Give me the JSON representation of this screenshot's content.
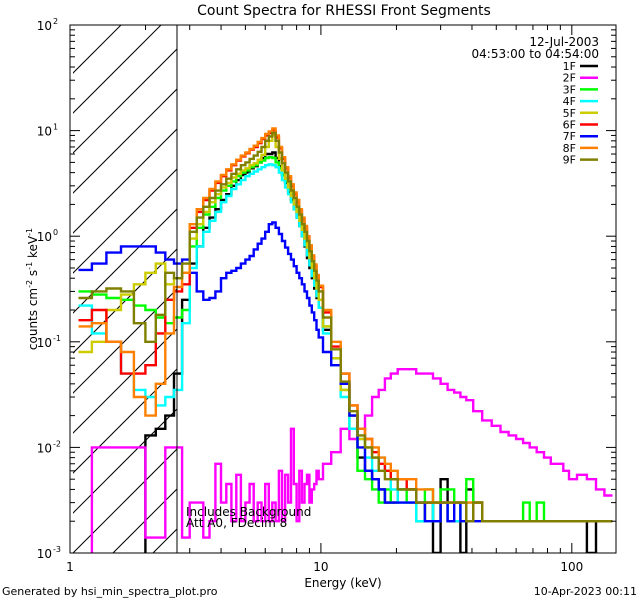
{
  "chart_data": {
    "type": "line",
    "title": "Count Spectra for RHESSI Front Segments",
    "xlabel": "Energy (keV)",
    "ylabel_parts": [
      "counts cm",
      "-2",
      " s",
      "-1",
      " keV",
      "-1"
    ],
    "x_scale": "log",
    "y_scale": "log",
    "xlim": [
      1,
      150
    ],
    "ylim": [
      0.001,
      100
    ],
    "x_ticks": [
      {
        "value": 1,
        "label": "1"
      },
      {
        "value": 10,
        "label": "10"
      },
      {
        "value": 100,
        "label": "100"
      }
    ],
    "y_ticks": [
      {
        "value": 0.001,
        "base": "10",
        "exp": "-3"
      },
      {
        "value": 0.01,
        "base": "10",
        "exp": "-2"
      },
      {
        "value": 0.1,
        "base": "10",
        "exp": "-1"
      },
      {
        "value": 1,
        "base": "10",
        "exp": "0"
      },
      {
        "value": 10,
        "base": "10",
        "exp": "1"
      },
      {
        "value": 100,
        "base": "10",
        "exp": "2"
      }
    ],
    "hatched_region_x": [
      1.1,
      3.0
    ],
    "date_text": "12-Jul-2003",
    "time_range_text": "04:53:00 to 04:54:00",
    "annotations": [
      "Includes Background",
      "Att A0, FDecim 8"
    ],
    "footer_left": "Generated by hsi_min_spectra_plot.pro",
    "footer_right": "10-Apr-2023 00:11",
    "legend_position": "top-right",
    "energy_bins": [
      1.15,
      1.3,
      1.5,
      1.7,
      1.9,
      2.1,
      2.3,
      2.5,
      2.7,
      2.9,
      3.1,
      3.3,
      3.5,
      3.7,
      3.9,
      4.1,
      4.3,
      4.5,
      4.7,
      4.9,
      5.1,
      5.3,
      5.5,
      5.7,
      5.9,
      6.1,
      6.3,
      6.5,
      6.7,
      6.9,
      7.1,
      7.3,
      7.5,
      7.7,
      7.9,
      8.1,
      8.3,
      8.5,
      8.7,
      8.9,
      9.1,
      9.3,
      9.5,
      9.7,
      9.9,
      10.5,
      11.5,
      12.5,
      13.5,
      14.5,
      15.5,
      16.5,
      17.5,
      18.5,
      19.5,
      21,
      23,
      25,
      27,
      29,
      31,
      33,
      35,
      37,
      39,
      42,
      46,
      50,
      54,
      58,
      62,
      66,
      70,
      75,
      80,
      85,
      90,
      95,
      100,
      110,
      120,
      130,
      140
    ],
    "series": [
      {
        "name": "1F",
        "color": "#000000",
        "values": [
          0.0,
          0.0,
          0.0,
          0.0,
          0.0,
          0.013,
          0.015,
          0.02,
          0.05,
          0.25,
          0.55,
          0.8,
          1.2,
          1.5,
          1.8,
          2.2,
          2.5,
          3.0,
          3.4,
          3.8,
          4.0,
          4.4,
          4.6,
          5.0,
          5.5,
          6.0,
          6.0,
          6.2,
          5.5,
          4.6,
          3.8,
          3.2,
          2.6,
          2.2,
          1.8,
          1.5,
          1.25,
          1.0,
          0.8,
          0.62,
          0.5,
          0.4,
          0.32,
          0.26,
          0.21,
          0.13,
          0.07,
          0.04,
          0.02,
          0.008,
          0.006,
          0.005,
          0.004,
          0.003,
          0.003,
          0.004,
          0.004,
          0.002,
          0.003,
          0.001,
          0.005,
          0.002,
          0.002,
          0.001,
          0.004,
          0.003,
          0.002,
          0.002,
          0.002,
          0.002,
          0.002,
          0.002,
          0.002,
          0.002,
          0.002,
          0.002,
          0.002,
          0.002,
          0.002,
          0.002,
          0.001,
          0.002,
          0.002
        ]
      },
      {
        "name": "2F",
        "color": "#ff00ff",
        "values": [
          0.0,
          0.01,
          0.01,
          0.01,
          0.01,
          0.0014,
          0.0014,
          0.01,
          0.01,
          0.0014,
          0.003,
          0.003,
          0.0014,
          0.002,
          0.007,
          0.003,
          0.0045,
          0.002,
          0.0055,
          0.002,
          0.003,
          0.0045,
          0.002,
          0.003,
          0.002,
          0.0045,
          0.002,
          0.003,
          0.002,
          0.006,
          0.002,
          0.0055,
          0.003,
          0.015,
          0.0045,
          0.002,
          0.006,
          0.003,
          0.0045,
          0.0055,
          0.003,
          0.004,
          0.0045,
          0.006,
          0.005,
          0.007,
          0.009,
          0.015,
          0.012,
          0.015,
          0.02,
          0.03,
          0.035,
          0.045,
          0.05,
          0.055,
          0.055,
          0.05,
          0.05,
          0.045,
          0.04,
          0.035,
          0.033,
          0.03,
          0.028,
          0.022,
          0.018,
          0.016,
          0.014,
          0.013,
          0.012,
          0.011,
          0.01,
          0.009,
          0.008,
          0.007,
          0.007,
          0.006,
          0.005,
          0.0055,
          0.005,
          0.004,
          0.0035
        ]
      },
      {
        "name": "3F",
        "color": "#00ff00",
        "values": [
          0.3,
          0.28,
          0.26,
          0.25,
          0.22,
          0.2,
          0.17,
          0.15,
          0.17,
          0.2,
          0.8,
          1.2,
          1.6,
          1.9,
          2.3,
          2.7,
          3.0,
          3.3,
          3.7,
          4.0,
          4.2,
          4.5,
          4.7,
          5.0,
          5.2,
          5.5,
          5.6,
          5.5,
          5.0,
          4.4,
          3.8,
          3.3,
          2.8,
          2.4,
          2.0,
          1.7,
          1.4,
          1.15,
          0.95,
          0.78,
          0.62,
          0.5,
          0.4,
          0.32,
          0.25,
          0.14,
          0.07,
          0.035,
          0.015,
          0.006,
          0.005,
          0.004,
          0.003,
          0.004,
          0.003,
          0.004,
          0.003,
          0.002,
          0.004,
          0.002,
          0.004,
          0.004,
          0.003,
          0.002,
          0.005,
          0.003,
          0.002,
          0.002,
          0.002,
          0.002,
          0.002,
          0.003,
          0.002,
          0.003,
          0.002,
          0.002,
          0.002,
          0.002,
          0.002,
          0.002,
          0.002,
          0.002,
          0.002
        ]
      },
      {
        "name": "4F",
        "color": "#00ffff",
        "values": [
          0.22,
          0.12,
          0.1,
          0.05,
          0.035,
          0.03,
          0.025,
          0.03,
          0.035,
          0.15,
          0.5,
          0.8,
          1.1,
          1.4,
          1.7,
          2.1,
          2.4,
          2.8,
          3.1,
          3.4,
          3.7,
          3.9,
          4.1,
          4.3,
          4.5,
          4.7,
          4.8,
          4.7,
          4.5,
          4.0,
          3.4,
          2.9,
          2.5,
          2.1,
          1.8,
          1.5,
          1.25,
          1.0,
          0.82,
          0.66,
          0.53,
          0.42,
          0.34,
          0.27,
          0.21,
          0.12,
          0.06,
          0.03,
          0.015,
          0.012,
          0.008,
          0.006,
          0.008,
          0.006,
          0.004,
          0.003,
          0.003,
          0.002,
          0.002,
          0.003,
          0.003,
          0.002,
          0.002,
          0.003,
          0.003,
          0.003,
          0.002,
          0.002,
          0.002,
          0.002,
          0.002,
          0.002,
          0.002,
          0.002,
          0.002,
          0.002,
          0.002,
          0.002,
          0.002,
          0.002,
          0.002,
          0.002,
          0.002
        ]
      },
      {
        "name": "5F",
        "color": "#cccc00",
        "values": [
          0.08,
          0.1,
          0.2,
          0.28,
          0.35,
          0.45,
          0.55,
          0.35,
          0.4,
          0.45,
          0.95,
          1.3,
          1.7,
          2.1,
          2.5,
          2.9,
          3.2,
          3.6,
          3.9,
          4.2,
          4.4,
          4.7,
          4.9,
          5.3,
          5.9,
          7.0,
          8.0,
          9.0,
          7.0,
          5.4,
          4.2,
          3.5,
          2.9,
          2.4,
          2.0,
          1.7,
          1.4,
          1.15,
          0.95,
          0.78,
          0.62,
          0.5,
          0.4,
          0.32,
          0.25,
          0.14,
          0.07,
          0.035,
          0.02,
          0.012,
          0.01,
          0.008,
          0.006,
          0.006,
          0.005,
          0.005,
          0.004,
          0.003,
          0.003,
          0.003,
          0.003,
          0.003,
          0.003,
          0.003,
          0.002,
          0.003,
          0.002,
          0.002,
          0.002,
          0.002,
          0.002,
          0.002,
          0.002,
          0.002,
          0.002,
          0.002,
          0.002,
          0.002,
          0.002,
          0.002,
          0.002,
          0.002,
          0.002
        ]
      },
      {
        "name": "6F",
        "color": "#ff0000",
        "values": [
          0.16,
          0.2,
          0.1,
          0.05,
          0.05,
          0.06,
          0.12,
          0.25,
          0.3,
          0.35,
          1.2,
          1.7,
          2.2,
          2.7,
          3.2,
          3.7,
          4.2,
          4.7,
          5.2,
          5.7,
          6.1,
          6.6,
          7.0,
          7.6,
          8.3,
          9.0,
          9.5,
          10.0,
          8.6,
          6.8,
          5.4,
          4.4,
          3.6,
          3.0,
          2.5,
          2.1,
          1.75,
          1.45,
          1.2,
          0.98,
          0.8,
          0.64,
          0.52,
          0.42,
          0.33,
          0.19,
          0.09,
          0.05,
          0.025,
          0.015,
          0.012,
          0.009,
          0.007,
          0.006,
          0.005,
          0.005,
          0.004,
          0.003,
          0.003,
          0.003,
          0.003,
          0.003,
          0.003,
          0.003,
          0.002,
          0.003,
          0.002,
          0.002,
          0.002,
          0.002,
          0.002,
          0.002,
          0.002,
          0.002,
          0.002,
          0.002,
          0.002,
          0.002,
          0.002,
          0.002,
          0.002,
          0.002,
          0.002
        ]
      },
      {
        "name": "7F",
        "color": "#0000ff",
        "values": [
          0.48,
          0.55,
          0.7,
          0.8,
          0.8,
          0.8,
          0.7,
          0.6,
          0.55,
          0.6,
          0.45,
          0.3,
          0.25,
          0.26,
          0.3,
          0.4,
          0.45,
          0.47,
          0.5,
          0.55,
          0.6,
          0.65,
          0.75,
          0.85,
          0.95,
          1.1,
          1.3,
          1.35,
          1.2,
          1.05,
          0.9,
          0.78,
          0.68,
          0.6,
          0.52,
          0.45,
          0.4,
          0.35,
          0.3,
          0.26,
          0.22,
          0.19,
          0.16,
          0.13,
          0.11,
          0.08,
          0.06,
          0.04,
          0.02,
          0.01,
          0.006,
          0.005,
          0.004,
          0.003,
          0.003,
          0.003,
          0.003,
          0.003,
          0.002,
          0.002,
          0.003,
          0.002,
          0.003,
          0.002,
          0.002,
          0.002,
          0.002,
          0.002,
          0.002,
          0.002,
          0.002,
          0.002,
          0.002,
          0.002,
          0.002,
          0.002,
          0.002,
          0.002,
          0.002,
          0.002,
          0.002,
          0.002,
          0.002
        ]
      },
      {
        "name": "8F",
        "color": "#ff8000",
        "values": [
          0.14,
          0.15,
          0.1,
          0.08,
          0.03,
          0.02,
          0.04,
          0.12,
          0.33,
          0.45,
          1.3,
          1.8,
          2.3,
          2.8,
          3.3,
          3.8,
          4.3,
          4.8,
          5.3,
          5.8,
          6.2,
          6.7,
          7.2,
          7.8,
          8.5,
          9.3,
          9.8,
          10.5,
          9.0,
          7.0,
          5.6,
          4.5,
          3.7,
          3.1,
          2.6,
          2.2,
          1.8,
          1.5,
          1.25,
          1.0,
          0.82,
          0.66,
          0.54,
          0.43,
          0.34,
          0.2,
          0.1,
          0.05,
          0.025,
          0.015,
          0.012,
          0.01,
          0.008,
          0.007,
          0.006,
          0.005,
          0.005,
          0.004,
          0.004,
          0.003,
          0.003,
          0.003,
          0.003,
          0.003,
          0.003,
          0.003,
          0.002,
          0.002,
          0.002,
          0.002,
          0.002,
          0.002,
          0.002,
          0.002,
          0.002,
          0.002,
          0.002,
          0.002,
          0.002,
          0.002,
          0.002,
          0.002,
          0.002
        ]
      },
      {
        "name": "9F",
        "color": "#808000",
        "values": [
          0.26,
          0.3,
          0.32,
          0.3,
          0.15,
          0.1,
          0.18,
          0.45,
          0.4,
          0.55,
          1.1,
          1.5,
          1.9,
          2.3,
          2.7,
          3.1,
          3.5,
          3.9,
          4.3,
          4.7,
          5.0,
          5.4,
          5.8,
          6.3,
          7.0,
          8.0,
          8.8,
          9.5,
          8.0,
          6.2,
          4.9,
          4.0,
          3.3,
          2.7,
          2.3,
          1.9,
          1.6,
          1.3,
          1.1,
          0.9,
          0.72,
          0.58,
          0.47,
          0.38,
          0.3,
          0.17,
          0.085,
          0.042,
          0.022,
          0.013,
          0.01,
          0.008,
          0.006,
          0.005,
          0.005,
          0.004,
          0.004,
          0.003,
          0.003,
          0.003,
          0.003,
          0.003,
          0.003,
          0.003,
          0.002,
          0.003,
          0.002,
          0.002,
          0.002,
          0.002,
          0.002,
          0.002,
          0.002,
          0.002,
          0.002,
          0.002,
          0.002,
          0.002,
          0.002,
          0.002,
          0.002,
          0.002,
          0.002
        ]
      }
    ]
  }
}
